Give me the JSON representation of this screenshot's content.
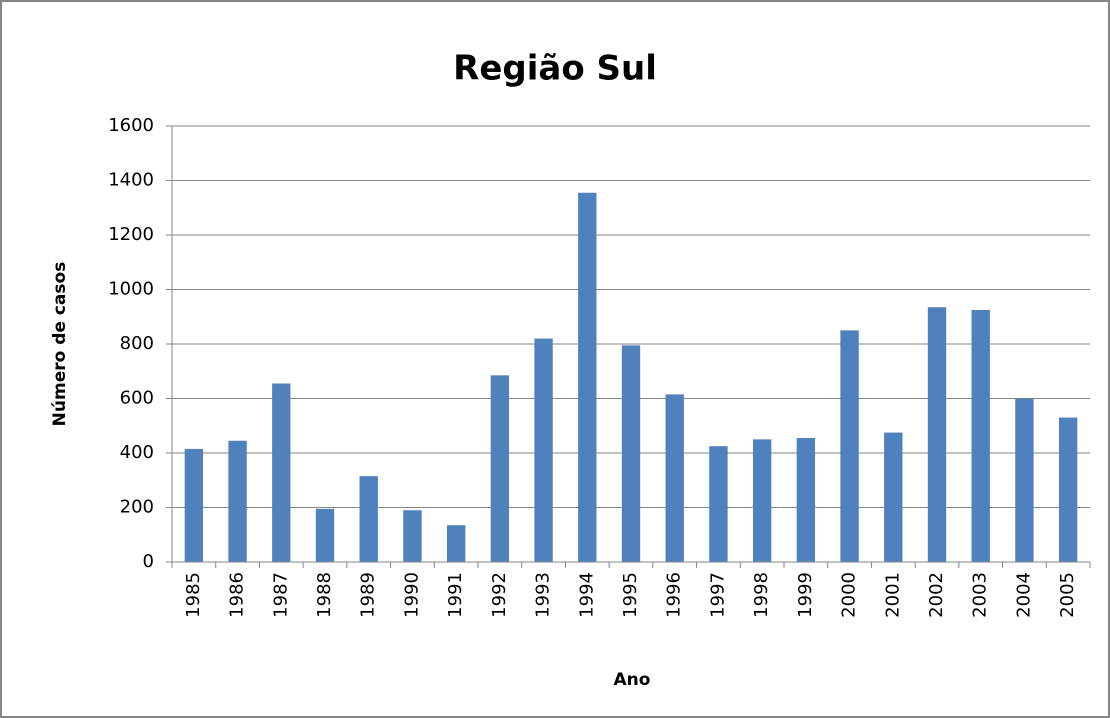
{
  "chart_data": {
    "type": "bar",
    "title": "Região Sul",
    "xlabel": "Ano",
    "ylabel": "Número de casos",
    "categories": [
      "1985",
      "1986",
      "1987",
      "1988",
      "1989",
      "1990",
      "1991",
      "1992",
      "1993",
      "1994",
      "1995",
      "1996",
      "1997",
      "1998",
      "1999",
      "2000",
      "2001",
      "2002",
      "2003",
      "2004",
      "2005"
    ],
    "values": [
      415,
      445,
      655,
      195,
      315,
      190,
      135,
      685,
      820,
      1355,
      795,
      615,
      425,
      450,
      455,
      850,
      475,
      935,
      925,
      600,
      530
    ],
    "color": "#4f81bd",
    "ylim": [
      0,
      1600
    ],
    "yticks": [
      0,
      200,
      400,
      600,
      800,
      1000,
      1200,
      1400,
      1600
    ],
    "grid": true
  }
}
